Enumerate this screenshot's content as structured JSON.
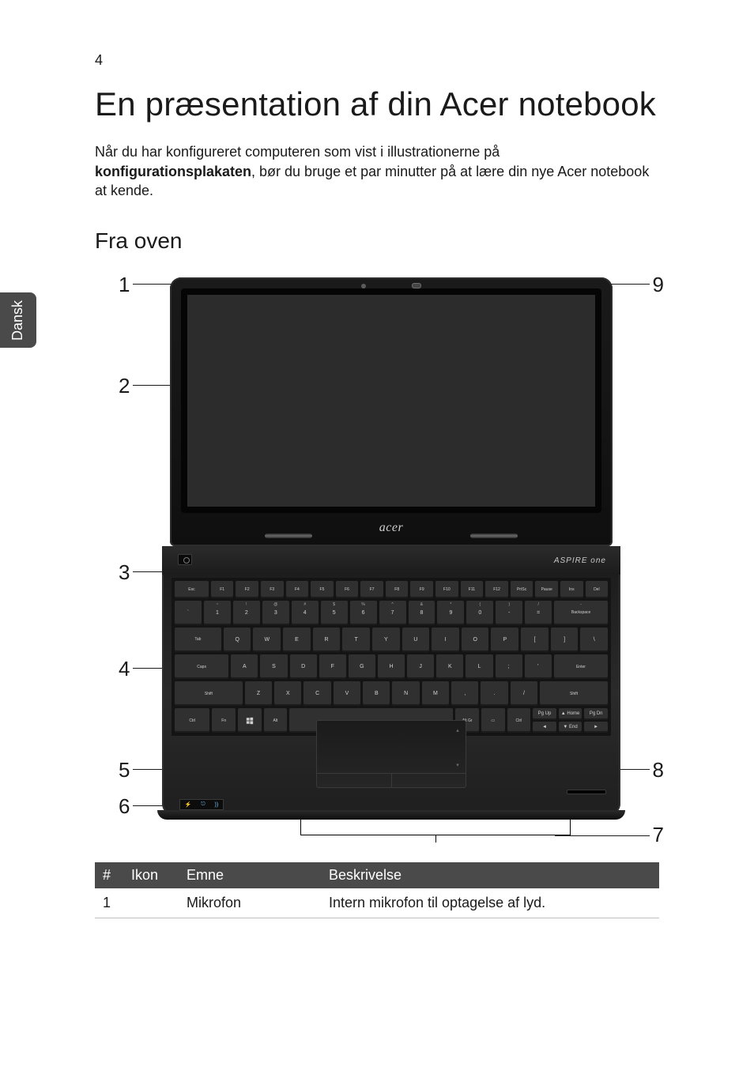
{
  "page_number": "4",
  "side_tab": "Dansk",
  "title": "En præsentation af din Acer notebook",
  "intro_pre": "Når du har konfigureret computeren som vist i illustrationerne på ",
  "intro_bold": "konfigurationsplakaten",
  "intro_post": ", bør du bruge et par minutter på at lære din nye Acer notebook at kende.",
  "subheading": "Fra oven",
  "lid_brand": "acer",
  "aspire_logo": "ASPIRE one",
  "callouts": {
    "c1": "1",
    "c2": "2",
    "c3": "3",
    "c4": "4",
    "c5": "5",
    "c6": "6",
    "c7": "7",
    "c8": "8",
    "c9": "9"
  },
  "keyboard": {
    "row0": [
      "Esc",
      "F1",
      "F2",
      "F3",
      "F4",
      "F5",
      "F6",
      "F7",
      "F8",
      "F9",
      "F10",
      "F11",
      "F12",
      "PrtSc",
      "Pause",
      "Ins",
      "Del"
    ],
    "row1_top": [
      "",
      "~",
      "!",
      "@",
      "#",
      "$",
      "%",
      "^",
      "&",
      "*",
      "(",
      ")",
      "/",
      "-",
      "+",
      ""
    ],
    "row1": [
      "`",
      "1",
      "2",
      "3",
      "4",
      "5",
      "6",
      "7",
      "8",
      "9",
      "0",
      "-",
      "=",
      "Backspace"
    ],
    "row2": [
      "Tab",
      "Q",
      "W",
      "E",
      "R",
      "T",
      "Y",
      "U",
      "I",
      "O",
      "P",
      "[",
      "]",
      "\\"
    ],
    "row3": [
      "Caps",
      "A",
      "S",
      "D",
      "F",
      "G",
      "H",
      "J",
      "K",
      "L",
      ";",
      "'",
      "Enter"
    ],
    "row4": [
      "Shift",
      "Z",
      "X",
      "C",
      "V",
      "B",
      "N",
      "M",
      ",",
      ".",
      "/",
      "Shift"
    ],
    "row5_labels": {
      "ctrl_l": "Ctrl",
      "fn": "Fn",
      "alt_l": "Alt",
      "altgr": "Alt Gr",
      "menu": "▭",
      "ctrl_r": "Ctrl",
      "pgup": "Pg Up",
      "pgdn": "Pg Dn",
      "home": "Home",
      "end": "End"
    },
    "arrows": {
      "up": "▲",
      "down": "▼",
      "left": "◄",
      "right": "►"
    }
  },
  "status_icons": [
    "⚡",
    "⎋",
    "))"
  ],
  "table": {
    "headers": {
      "num": "#",
      "icon": "Ikon",
      "topic": "Emne",
      "desc": "Beskrivelse"
    },
    "rows": [
      {
        "num": "1",
        "icon": "",
        "topic": "Mikrofon",
        "desc": "Intern mikrofon til optagelse af lyd."
      }
    ]
  },
  "colors": {
    "page_bg": "#ffffff",
    "text": "#1a1a1a",
    "tab_bg": "#4a4a4a",
    "tab_text": "#ffffff",
    "table_header_bg": "#4a4a4a",
    "table_header_text": "#ffffff",
    "table_border": "#bfbfbf",
    "laptop_shell": "#1a1a1a",
    "laptop_key": "#303030",
    "laptop_key_text": "#d0d0d0",
    "screen": "#2c2c2c"
  },
  "fontsizes": {
    "page_number": 18,
    "title": 42,
    "intro": 18,
    "subheading": 28,
    "callout": 26,
    "table": 18,
    "key": 7
  }
}
